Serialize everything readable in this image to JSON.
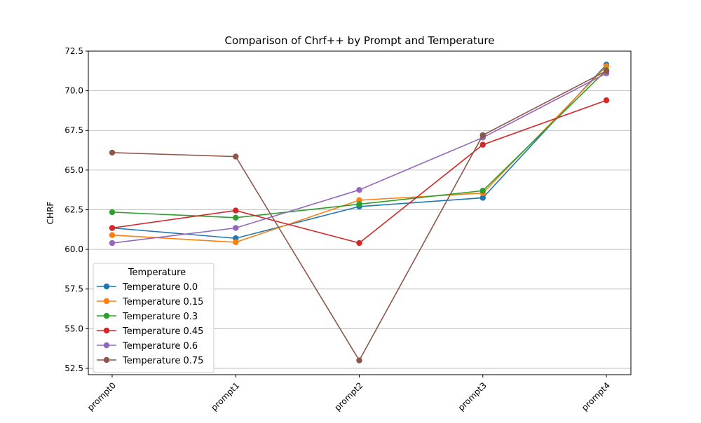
{
  "chart_data": {
    "type": "line",
    "title": "Comparison of Chrf++ by Prompt and Temperature",
    "xlabel": "",
    "ylabel": "CHRF",
    "categories": [
      "prompt0",
      "prompt1",
      "prompt2",
      "prompt3",
      "prompt4"
    ],
    "ylim": [
      52.1,
      72.5
    ],
    "yticks": [
      "52.5",
      "55.0",
      "57.5",
      "60.0",
      "62.5",
      "65.0",
      "67.5",
      "70.0",
      "72.5"
    ],
    "grid": "horizontal",
    "legend": {
      "title": "Temperature",
      "placement": "lower-left"
    },
    "series": [
      {
        "name": "Temperature 0.0",
        "color": "#1f77b4",
        "values": [
          61.35,
          60.7,
          62.7,
          63.25,
          71.65
        ]
      },
      {
        "name": "Temperature 0.15",
        "color": "#ff7f0e",
        "values": [
          60.9,
          60.45,
          63.1,
          63.55,
          71.55
        ]
      },
      {
        "name": "Temperature 0.3",
        "color": "#2ca02c",
        "values": [
          62.35,
          62.0,
          62.85,
          63.7,
          71.3
        ]
      },
      {
        "name": "Temperature 0.45",
        "color": "#d62728",
        "values": [
          61.35,
          62.45,
          60.4,
          66.6,
          69.4
        ]
      },
      {
        "name": "Temperature 0.6",
        "color": "#9467bd",
        "values": [
          60.4,
          61.35,
          63.75,
          67.05,
          71.1
        ]
      },
      {
        "name": "Temperature 0.75",
        "color": "#8c564b",
        "values": [
          66.1,
          65.85,
          53.0,
          67.2,
          71.25
        ]
      }
    ]
  }
}
